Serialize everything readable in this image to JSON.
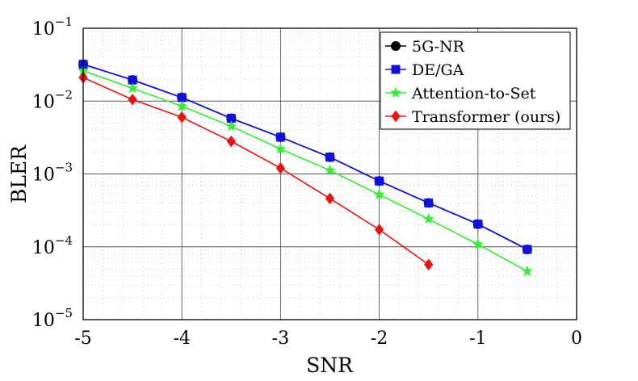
{
  "chart_data": {
    "type": "line",
    "title": "",
    "xlabel": "SNR",
    "ylabel": "BLER",
    "xlim": [
      -5,
      0
    ],
    "ylim": [
      1e-05,
      0.1
    ],
    "yscale": "log",
    "grid": "on (major solid, minor dotted)",
    "legend_position": "top-right",
    "x_ticks": [
      "-5",
      "-4",
      "-3",
      "-2",
      "-1",
      "0"
    ],
    "y_ticks": [
      {
        "base": "10",
        "exp": "−1"
      },
      {
        "base": "10",
        "exp": "−2"
      },
      {
        "base": "10",
        "exp": "−3"
      },
      {
        "base": "10",
        "exp": "−4"
      },
      {
        "base": "10",
        "exp": "−5"
      }
    ],
    "series": [
      {
        "name": "5G-NR",
        "color": "#000000",
        "marker": "circle",
        "x": [
          -5,
          -4.5,
          -4,
          -3.5,
          -3,
          -2.5,
          -2,
          -1.5,
          -1,
          -0.5
        ],
        "y": [
          0.032,
          0.0195,
          0.0112,
          0.0058,
          0.0032,
          0.0017,
          0.0008,
          0.0004,
          0.000205,
          9.2e-05
        ]
      },
      {
        "name": "DE/GA",
        "color": "#1010e0",
        "marker": "square",
        "x": [
          -5,
          -4.5,
          -4,
          -3.5,
          -3,
          -2.5,
          -2,
          -1.5,
          -1,
          -0.5
        ],
        "y": [
          0.032,
          0.0195,
          0.0112,
          0.0058,
          0.0032,
          0.0017,
          0.0008,
          0.0004,
          0.000205,
          9.2e-05
        ]
      },
      {
        "name": "Attention-to-Set",
        "color": "#33ee33",
        "marker": "star",
        "x": [
          -5,
          -4.5,
          -4,
          -3.5,
          -3,
          -2.5,
          -2,
          -1.5,
          -1,
          -0.5
        ],
        "y": [
          0.026,
          0.015,
          0.0085,
          0.0045,
          0.0022,
          0.00112,
          0.00052,
          0.00024,
          0.000108,
          4.6e-05
        ]
      },
      {
        "name": "Transformer (ours)",
        "color": "#ee1111",
        "marker": "diamond",
        "x": [
          -5,
          -4.5,
          -4,
          -3.5,
          -3,
          -2.5,
          -2,
          -1.5
        ],
        "y": [
          0.021,
          0.0105,
          0.006,
          0.0028,
          0.0012,
          0.00046,
          0.000172,
          5.7e-05
        ]
      }
    ]
  }
}
